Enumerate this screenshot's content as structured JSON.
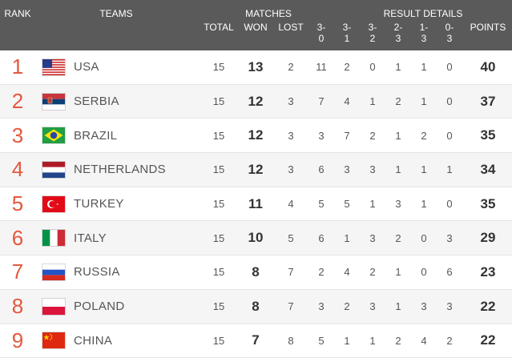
{
  "header": {
    "rank": "RANK",
    "teams": "TEAMS",
    "matches": "MATCHES",
    "total": "TOTAL",
    "won": "WON",
    "lost": "LOST",
    "result_details": "RESULT DETAILS",
    "points": "POINTS",
    "result_cols": [
      {
        "top": "3-",
        "bottom": "0"
      },
      {
        "top": "3-",
        "bottom": "1"
      },
      {
        "top": "3-",
        "bottom": "2"
      },
      {
        "top": "2-",
        "bottom": "3"
      },
      {
        "top": "1-",
        "bottom": "3"
      },
      {
        "top": "0-",
        "bottom": "3"
      }
    ]
  },
  "rows": [
    {
      "rank": "1",
      "team": "USA",
      "flag": "usa-flag-icon",
      "total": "15",
      "won": "13",
      "lost": "2",
      "r30": "11",
      "r31": "2",
      "r32": "0",
      "r23": "1",
      "r13": "1",
      "r03": "0",
      "points": "40"
    },
    {
      "rank": "2",
      "team": "SERBIA",
      "flag": "serbia-flag-icon",
      "total": "15",
      "won": "12",
      "lost": "3",
      "r30": "7",
      "r31": "4",
      "r32": "1",
      "r23": "2",
      "r13": "1",
      "r03": "0",
      "points": "37"
    },
    {
      "rank": "3",
      "team": "BRAZIL",
      "flag": "brazil-flag-icon",
      "total": "15",
      "won": "12",
      "lost": "3",
      "r30": "3",
      "r31": "7",
      "r32": "2",
      "r23": "1",
      "r13": "2",
      "r03": "0",
      "points": "35"
    },
    {
      "rank": "4",
      "team": "NETHERLANDS",
      "flag": "netherlands-flag-icon",
      "total": "15",
      "won": "12",
      "lost": "3",
      "r30": "6",
      "r31": "3",
      "r32": "3",
      "r23": "1",
      "r13": "1",
      "r03": "1",
      "points": "34"
    },
    {
      "rank": "5",
      "team": "TURKEY",
      "flag": "turkey-flag-icon",
      "total": "15",
      "won": "11",
      "lost": "4",
      "r30": "5",
      "r31": "5",
      "r32": "1",
      "r23": "3",
      "r13": "1",
      "r03": "0",
      "points": "35"
    },
    {
      "rank": "6",
      "team": "ITALY",
      "flag": "italy-flag-icon",
      "total": "15",
      "won": "10",
      "lost": "5",
      "r30": "6",
      "r31": "1",
      "r32": "3",
      "r23": "2",
      "r13": "0",
      "r03": "3",
      "points": "29"
    },
    {
      "rank": "7",
      "team": "RUSSIA",
      "flag": "russia-flag-icon",
      "total": "15",
      "won": "8",
      "lost": "7",
      "r30": "2",
      "r31": "4",
      "r32": "2",
      "r23": "1",
      "r13": "0",
      "r03": "6",
      "points": "23"
    },
    {
      "rank": "8",
      "team": "POLAND",
      "flag": "poland-flag-icon",
      "total": "15",
      "won": "8",
      "lost": "7",
      "r30": "3",
      "r31": "2",
      "r32": "3",
      "r23": "1",
      "r13": "3",
      "r03": "3",
      "points": "22"
    },
    {
      "rank": "9",
      "team": "CHINA",
      "flag": "china-flag-icon",
      "total": "15",
      "won": "7",
      "lost": "8",
      "r30": "5",
      "r31": "1",
      "r32": "1",
      "r23": "2",
      "r13": "4",
      "r03": "2",
      "points": "22"
    }
  ],
  "colors": {
    "header_bg": "#5a5a5a",
    "rank_color": "#e4583f"
  }
}
